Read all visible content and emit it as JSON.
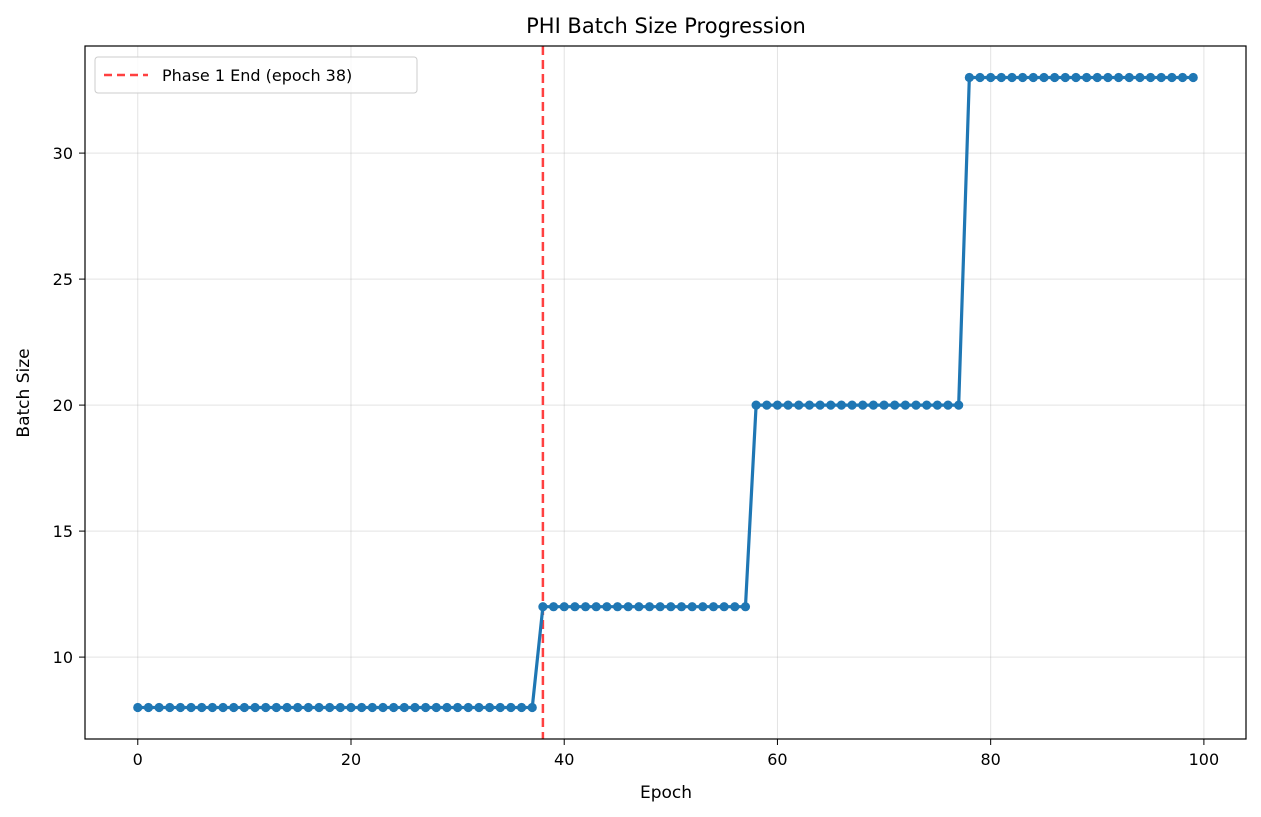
{
  "chart_data": {
    "type": "line",
    "title": "PHI Batch Size Progression",
    "xlabel": "Epoch",
    "ylabel": "Batch Size",
    "xlim": [
      -4.95,
      103.95
    ],
    "ylim": [
      6.75,
      34.25
    ],
    "xticks": [
      0,
      20,
      40,
      60,
      80,
      100
    ],
    "yticks": [
      10,
      15,
      20,
      25,
      30
    ],
    "grid": true,
    "legend_position": "top-left",
    "series": [
      {
        "name": "Batch Size",
        "color": "#1f77b4",
        "marker": "circle",
        "segments": [
          {
            "start_epoch": 0,
            "end_epoch": 37,
            "value": 8
          },
          {
            "start_epoch": 38,
            "end_epoch": 57,
            "value": 12
          },
          {
            "start_epoch": 58,
            "end_epoch": 77,
            "value": 20
          },
          {
            "start_epoch": 78,
            "end_epoch": 99,
            "value": 33
          }
        ]
      }
    ],
    "annotations": [
      {
        "type": "vline",
        "x": 38,
        "color": "#ff0000",
        "style": "dashed",
        "label": "Phase 1 End (epoch 38)"
      }
    ]
  }
}
